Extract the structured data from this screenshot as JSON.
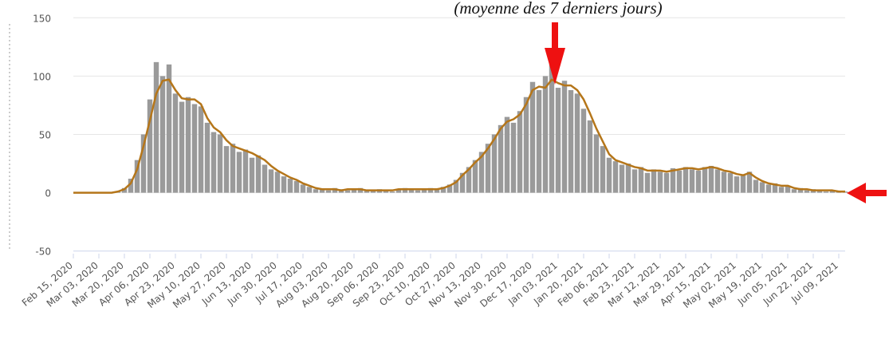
{
  "chart_data": {
    "type": "bar+line",
    "annotation": "(moyenne des 7 derniers jours)",
    "categories": [
      "Feb 15, 2020",
      null,
      null,
      null,
      "Mar 03, 2020",
      null,
      null,
      null,
      "Mar 20, 2020",
      null,
      null,
      null,
      "Apr 06, 2020",
      null,
      null,
      null,
      "Apr 23, 2020",
      null,
      null,
      null,
      "May 10, 2020",
      null,
      null,
      null,
      "May 27, 2020",
      null,
      null,
      null,
      "Jun 13, 2020",
      null,
      null,
      null,
      "Jun 30, 2020",
      null,
      null,
      null,
      "Jul 17, 2020",
      null,
      null,
      null,
      "Aug 03, 2020",
      null,
      null,
      null,
      "Aug 20, 2020",
      null,
      null,
      null,
      "Sep 06, 2020",
      null,
      null,
      null,
      "Sep 23, 2020",
      null,
      null,
      null,
      "Oct 10, 2020",
      null,
      null,
      null,
      "Oct 27, 2020",
      null,
      null,
      null,
      "Nov 13, 2020",
      null,
      null,
      null,
      "Nov 30, 2020",
      null,
      null,
      null,
      "Dec 17, 2020",
      null,
      null,
      null,
      "Jan 03, 2021",
      null,
      null,
      null,
      "Jan 20, 2021",
      null,
      null,
      null,
      "Feb 06, 2021",
      null,
      null,
      null,
      "Feb 23, 2021",
      null,
      null,
      null,
      "Mar 12, 2021",
      null,
      null,
      null,
      "Mar 29, 2021",
      null,
      null,
      null,
      "Apr 15, 2021",
      null,
      null,
      null,
      "May 02, 2021",
      null,
      null,
      null,
      "May 19, 2021",
      null,
      null,
      null,
      "Jun 05, 2021",
      null,
      null,
      null,
      "Jun 22, 2021",
      null,
      null,
      null,
      "Jul 09, 2021",
      null
    ],
    "series": [
      {
        "kind": "bar",
        "color": "#9a9a9a",
        "values": [
          0,
          0,
          0,
          0,
          0,
          0,
          0,
          1,
          4,
          12,
          28,
          50,
          80,
          112,
          100,
          110,
          85,
          78,
          82,
          76,
          74,
          60,
          52,
          50,
          40,
          42,
          35,
          37,
          30,
          32,
          24,
          20,
          18,
          14,
          12,
          10,
          7,
          5,
          3,
          3,
          2,
          4,
          3,
          2,
          3,
          4,
          2,
          2,
          3,
          2,
          1,
          3,
          4,
          3,
          2,
          3,
          4,
          3,
          5,
          7,
          11,
          17,
          22,
          28,
          35,
          42,
          50,
          58,
          65,
          60,
          70,
          82,
          95,
          88,
          100,
          115,
          90,
          96,
          88,
          85,
          72,
          62,
          50,
          40,
          30,
          27,
          24,
          25,
          20,
          22,
          17,
          20,
          18,
          17,
          21,
          19,
          22,
          20,
          19,
          22,
          23,
          20,
          18,
          17,
          14,
          15,
          18,
          11,
          9,
          7,
          8,
          5,
          6,
          3,
          4,
          2,
          3,
          2,
          1,
          2,
          1,
          1
        ]
      },
      {
        "kind": "line",
        "color": "#b5761a",
        "values": [
          0,
          0,
          0,
          0,
          0,
          0,
          0,
          1,
          3,
          8,
          20,
          40,
          62,
          85,
          96,
          97,
          88,
          81,
          80,
          80,
          76,
          64,
          56,
          52,
          45,
          40,
          38,
          36,
          34,
          31,
          28,
          23,
          19,
          16,
          13,
          11,
          8,
          6,
          4,
          3,
          3,
          3,
          2,
          3,
          3,
          3,
          2,
          2,
          2,
          2,
          2,
          3,
          3,
          3,
          3,
          3,
          3,
          3,
          4,
          6,
          9,
          15,
          20,
          26,
          31,
          38,
          46,
          55,
          61,
          63,
          67,
          76,
          88,
          91,
          90,
          97,
          94,
          92,
          92,
          88,
          80,
          68,
          55,
          44,
          33,
          28,
          26,
          24,
          22,
          21,
          19,
          19,
          19,
          18,
          19,
          20,
          21,
          21,
          20,
          21,
          22,
          21,
          19,
          18,
          16,
          15,
          17,
          13,
          10,
          8,
          7,
          6,
          6,
          4,
          3,
          3,
          2,
          2,
          2,
          2,
          1,
          1
        ]
      }
    ],
    "ylim": [
      -55,
      155
    ],
    "yticks": [
      -50,
      0,
      50,
      100,
      150
    ],
    "grid": true
  }
}
